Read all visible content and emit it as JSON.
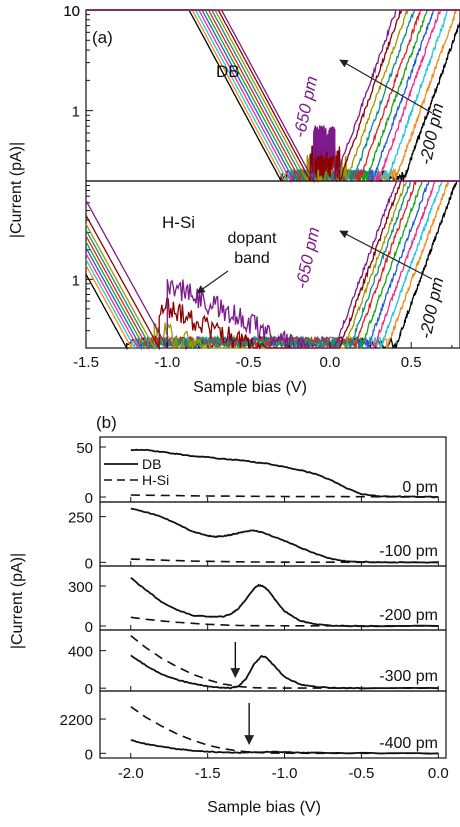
{
  "figure": {
    "ylabel_a": "|Current (pA)|",
    "ylabel_b": "|Current (pA)|"
  },
  "chart_data": [
    {
      "id": "a-top",
      "type": "line",
      "panel_label": "(a)",
      "label": "DB",
      "yscale": "log",
      "ylim": [
        0.2,
        10
      ],
      "yticks": [
        {
          "v": 10,
          "label": "10"
        },
        {
          "v": 1,
          "label": "1"
        },
        {
          "v": 10,
          "label": "10"
        }
      ],
      "xlim": [
        -1.5,
        0.8
      ],
      "xlabel": "",
      "arrow_labels": {
        "from": "-650 pm",
        "to": "-200 pm"
      },
      "series": [
        {
          "color": "#000000",
          "onset_left": -0.3,
          "onset_right": 0.45
        },
        {
          "color": "#f28c1c",
          "onset_left": -0.28,
          "onset_right": 0.4
        },
        {
          "color": "#26c6da",
          "onset_left": -0.26,
          "onset_right": 0.35
        },
        {
          "color": "#ec2f8c",
          "onset_left": -0.24,
          "onset_right": 0.3
        },
        {
          "color": "#1f5bd8",
          "onset_left": -0.22,
          "onset_right": 0.26
        },
        {
          "color": "#1aa61a",
          "onset_left": -0.2,
          "onset_right": 0.22
        },
        {
          "color": "#e02020",
          "onset_left": -0.18,
          "onset_right": 0.18
        },
        {
          "color": "#0f8a8a",
          "onset_left": -0.16,
          "onset_right": 0.14
        },
        {
          "color": "#9a9a00",
          "onset_left": -0.14,
          "onset_right": 0.1
        },
        {
          "color": "#8b0000",
          "onset_left": -0.12,
          "onset_right": 0.06
        },
        {
          "color": "#7b1a8b",
          "onset_left": -0.1,
          "onset_right": 0.03
        }
      ]
    },
    {
      "id": "a-bottom",
      "type": "line",
      "label": "H-Si",
      "annotation": [
        "dopant",
        "band"
      ],
      "yscale": "log",
      "ylim": [
        0.2,
        10
      ],
      "yticks": [
        {
          "v": 1,
          "label": "1"
        }
      ],
      "xlim": [
        -1.5,
        0.8
      ],
      "xticks": [
        -1.5,
        -1.0,
        -0.5,
        0.0,
        0.5
      ],
      "xtick_labels": [
        "-1.5",
        "-1.0",
        "-0.5",
        "0.0",
        "0.5"
      ],
      "xlabel": "Sample bias (V)",
      "arrow_labels": {
        "from": "-650 pm",
        "to": "-200 pm"
      },
      "series": [
        {
          "color": "#000000",
          "onset_left": -1.25,
          "onset_right": 0.4
        },
        {
          "color": "#f28c1c",
          "onset_left": -1.22,
          "onset_right": 0.35
        },
        {
          "color": "#26c6da",
          "onset_left": -1.2,
          "onset_right": 0.31
        },
        {
          "color": "#ec2f8c",
          "onset_left": -1.18,
          "onset_right": 0.27
        },
        {
          "color": "#1f5bd8",
          "onset_left": -1.16,
          "onset_right": 0.23
        },
        {
          "color": "#1aa61a",
          "onset_left": -1.14,
          "onset_right": 0.19
        },
        {
          "color": "#e02020",
          "onset_left": -1.12,
          "onset_right": 0.15
        },
        {
          "color": "#0f8a8a",
          "onset_left": -1.1,
          "onset_right": 0.12
        },
        {
          "color": "#9a9a00",
          "onset_left": -1.08,
          "onset_right": 0.09
        },
        {
          "color": "#8b0000",
          "onset_left": -1.05,
          "onset_right": 0.06
        },
        {
          "color": "#7b1a8b",
          "onset_left": -1.0,
          "onset_right": 0.03
        }
      ]
    },
    {
      "id": "b1",
      "type": "line",
      "panel_label": "(b)",
      "tag": "0 pm",
      "ylim": [
        -5,
        60
      ],
      "yticks": [
        0,
        50
      ],
      "xlim": [
        -2.2,
        0.05
      ],
      "legend": [
        "DB",
        "H-Si"
      ],
      "series": [
        {
          "name": "DB",
          "style": "solid",
          "x": [
            -2.0,
            -1.9,
            -1.8,
            -1.7,
            -1.6,
            -1.5,
            -1.4,
            -1.3,
            -1.2,
            -1.1,
            -1.0,
            -0.9,
            -0.8,
            -0.7,
            -0.6,
            -0.5,
            -0.4,
            -0.3,
            -0.2,
            -0.1,
            0.0
          ],
          "y": [
            47,
            47,
            45,
            43,
            41,
            40,
            38,
            37,
            35,
            33,
            30,
            27,
            23,
            17,
            9,
            3,
            1,
            0.5,
            0.3,
            0.2,
            0
          ]
        },
        {
          "name": "H-Si",
          "style": "dashed",
          "x": [
            -2.0,
            -1.5,
            -1.0,
            -0.5,
            0.0
          ],
          "y": [
            2,
            1,
            0.5,
            0.3,
            0
          ]
        }
      ]
    },
    {
      "id": "b2",
      "type": "line",
      "tag": "-100 pm",
      "ylim": [
        -20,
        330
      ],
      "yticks": [
        0,
        250
      ],
      "xlim": [
        -2.2,
        0.05
      ],
      "series": [
        {
          "name": "DB",
          "style": "solid",
          "x": [
            -2.0,
            -1.9,
            -1.8,
            -1.7,
            -1.6,
            -1.5,
            -1.45,
            -1.4,
            -1.35,
            -1.3,
            -1.25,
            -1.2,
            -1.15,
            -1.1,
            -1.0,
            -0.9,
            -0.8,
            -0.7,
            -0.6,
            -0.5,
            -0.4,
            -0.3,
            -0.2,
            0.0
          ],
          "y": [
            295,
            275,
            250,
            210,
            170,
            145,
            140,
            143,
            150,
            160,
            170,
            175,
            165,
            150,
            118,
            82,
            48,
            20,
            6,
            2,
            1,
            0,
            0,
            0
          ]
        },
        {
          "name": "H-Si",
          "style": "dashed",
          "x": [
            -2.0,
            -1.8,
            -1.6,
            -1.4,
            -1.2,
            -1.0,
            0.0
          ],
          "y": [
            18,
            12,
            7,
            4,
            2,
            1,
            0
          ]
        }
      ]
    },
    {
      "id": "b3",
      "type": "line",
      "tag": "-200 pm",
      "ylim": [
        -30,
        450
      ],
      "yticks": [
        0,
        300
      ],
      "xlim": [
        -2.2,
        0.05
      ],
      "series": [
        {
          "name": "DB",
          "style": "solid",
          "x": [
            -2.0,
            -1.9,
            -1.8,
            -1.7,
            -1.6,
            -1.5,
            -1.4,
            -1.35,
            -1.3,
            -1.25,
            -1.2,
            -1.17,
            -1.14,
            -1.1,
            -1.05,
            -1.0,
            -0.9,
            -0.8,
            -0.7,
            -0.6,
            -0.5,
            -0.4,
            0.0
          ],
          "y": [
            360,
            270,
            180,
            120,
            80,
            70,
            72,
            90,
            130,
            200,
            280,
            305,
            300,
            260,
            180,
            110,
            40,
            12,
            3,
            1,
            0,
            0,
            0
          ]
        },
        {
          "name": "H-Si",
          "style": "dashed",
          "x": [
            -2.0,
            -1.9,
            -1.8,
            -1.7,
            -1.6,
            -1.5,
            -1.4,
            -1.3,
            -1.2,
            0.0
          ],
          "y": [
            65,
            50,
            38,
            28,
            20,
            13,
            8,
            4,
            2,
            0
          ]
        }
      ]
    },
    {
      "id": "b4",
      "type": "line",
      "tag": "-300 pm",
      "ylim": [
        -30,
        620
      ],
      "yticks": [
        0,
        400
      ],
      "xlim": [
        -2.2,
        0.05
      ],
      "arrow_x": -1.32,
      "series": [
        {
          "name": "DB",
          "style": "solid",
          "x": [
            -2.0,
            -1.9,
            -1.8,
            -1.7,
            -1.6,
            -1.5,
            -1.4,
            -1.35,
            -1.3,
            -1.25,
            -1.2,
            -1.15,
            -1.12,
            -1.08,
            -1.0,
            -0.9,
            -0.8,
            -0.7,
            -0.6,
            -0.5,
            0.0
          ],
          "y": [
            350,
            240,
            150,
            90,
            50,
            20,
            5,
            2,
            20,
            100,
            250,
            340,
            330,
            260,
            120,
            40,
            15,
            5,
            2,
            0,
            0
          ]
        },
        {
          "name": "H-Si",
          "style": "dashed",
          "x": [
            -2.0,
            -1.9,
            -1.8,
            -1.7,
            -1.6,
            -1.5,
            -1.4,
            -1.3,
            -1.2,
            -1.1,
            -1.0,
            0.0
          ],
          "y": [
            560,
            430,
            320,
            230,
            150,
            90,
            45,
            18,
            5,
            2,
            1,
            0
          ]
        }
      ]
    },
    {
      "id": "b5",
      "type": "line",
      "tag": "-400 pm",
      "ylim": [
        -300,
        4000
      ],
      "yticks": [
        0,
        2200
      ],
      "xlim": [
        -2.2,
        0.05
      ],
      "arrow_x": -1.23,
      "series": [
        {
          "name": "DB",
          "style": "solid",
          "x": [
            -2.0,
            -1.9,
            -1.8,
            -1.7,
            -1.6,
            -1.5,
            -1.4,
            -1.3,
            -1.2,
            -1.1,
            -1.0,
            -0.9,
            -0.8,
            -0.5,
            0.0
          ],
          "y": [
            850,
            600,
            420,
            280,
            180,
            110,
            60,
            40,
            60,
            100,
            80,
            50,
            30,
            10,
            0
          ]
        },
        {
          "name": "H-Si",
          "style": "dashed",
          "x": [
            -2.0,
            -1.9,
            -1.8,
            -1.7,
            -1.6,
            -1.5,
            -1.4,
            -1.3,
            -1.2,
            -1.1,
            -1.0,
            0.0
          ],
          "y": [
            3000,
            2300,
            1750,
            1250,
            850,
            530,
            300,
            150,
            60,
            20,
            5,
            0
          ]
        }
      ]
    }
  ],
  "panel_b_axis": {
    "xticks": [
      -2.0,
      -1.5,
      -1.0,
      -0.5,
      0.0
    ],
    "xtick_labels": [
      "-2.0",
      "-1.5",
      "-1.0",
      "-0.5",
      "0.0"
    ],
    "xlabel": "Sample bias (V)"
  }
}
